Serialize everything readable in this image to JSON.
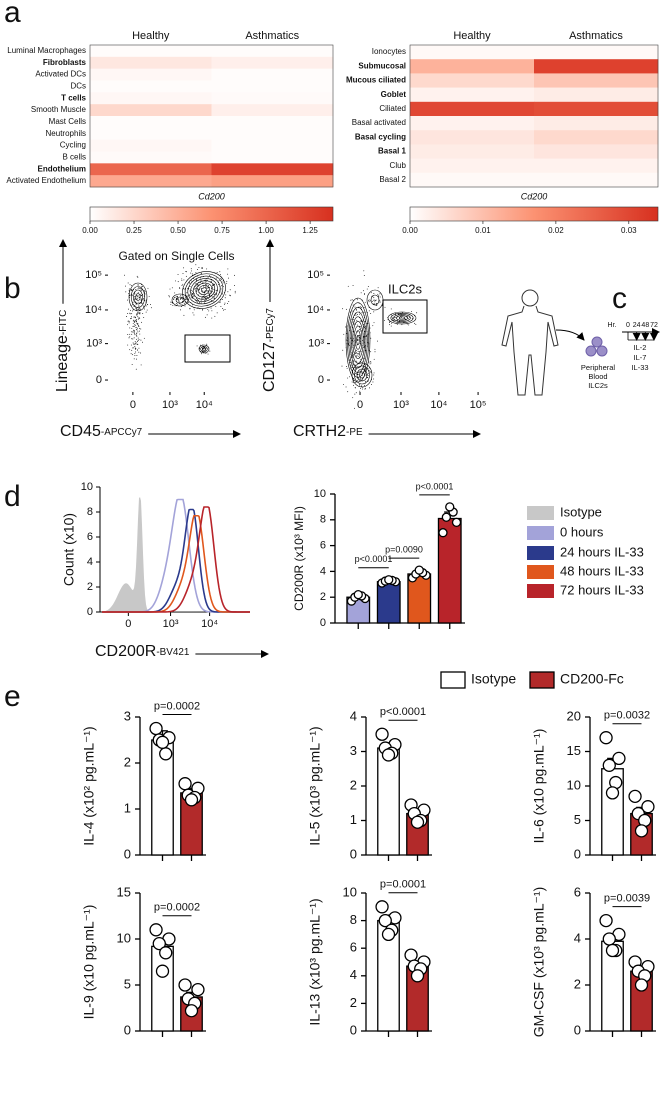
{
  "panel_labels": [
    "a",
    "b",
    "c",
    "d",
    "e"
  ],
  "diagram": {
    "cells_label": [
      "Peripheral",
      "Blood",
      "ILC2s"
    ],
    "time_unit": "Hr.",
    "times": [
      0,
      24,
      48,
      72
    ],
    "cytokines": [
      "IL-2",
      "IL-7",
      "IL-33"
    ]
  },
  "chart_data": [
    {
      "type": "heatmap",
      "columns": [
        "Healthy",
        "Asthmatics"
      ],
      "rows": [
        "Luminal Macrophages",
        "Fibroblasts",
        "Activated DCs",
        "DCs",
        "T cells",
        "Smooth Muscle",
        "Mast Cells",
        "Neutrophils",
        "Cycling",
        "B cells",
        "Endothelium",
        "Activated Endothelium"
      ],
      "bold_rows": [
        false,
        true,
        false,
        false,
        true,
        false,
        false,
        false,
        false,
        false,
        true,
        false
      ],
      "values": [
        [
          0.02,
          0.02
        ],
        [
          0.15,
          0.1
        ],
        [
          0.05,
          0.02
        ],
        [
          0.02,
          0.02
        ],
        [
          0.05,
          0.03
        ],
        [
          0.25,
          0.1
        ],
        [
          0.02,
          0.02
        ],
        [
          0.02,
          0.02
        ],
        [
          0.05,
          0.02
        ],
        [
          0.03,
          0.02
        ],
        [
          1.0,
          1.25
        ],
        [
          0.55,
          0.6
        ]
      ],
      "clim": [
        0,
        1.38
      ],
      "cticks": [
        {
          "value": 0,
          "label": "0.00"
        },
        0.25,
        {
          "value": 0.5,
          "label": "0.50"
        },
        0.75,
        {
          "value": 1,
          "label": "1.00"
        },
        1.25
      ],
      "xlabel": "Cd200",
      "colors": [
        "#ffffff",
        "#fc9272",
        "#d7301f"
      ]
    },
    {
      "type": "heatmap",
      "columns": [
        "Healthy",
        "Asthmatics"
      ],
      "rows": [
        "Ionocytes",
        "Submucosal",
        "Mucous ciliated",
        "Goblet",
        "Ciliated",
        "Basal activated",
        "Basal cycling",
        "Basal 1",
        "Club",
        "Basal 2"
      ],
      "bold_rows": [
        false,
        true,
        true,
        true,
        false,
        false,
        true,
        true,
        false,
        false
      ],
      "values": [
        [
          0.001,
          0.001
        ],
        [
          0.012,
          0.031
        ],
        [
          0.006,
          0.009
        ],
        [
          0.002,
          0.003
        ],
        [
          0.03,
          0.029
        ],
        [
          0.002,
          0.003
        ],
        [
          0.004,
          0.006
        ],
        [
          0.003,
          0.004
        ],
        [
          0.002,
          0.002
        ],
        [
          0.001,
          0.001
        ]
      ],
      "clim": [
        0,
        0.034
      ],
      "cticks": [
        {
          "value": 0,
          "label": "0.00"
        },
        0.01,
        0.02,
        0.03
      ],
      "xlabel": "Cd200",
      "colors": [
        "#ffffff",
        "#fc9272",
        "#d7301f"
      ]
    },
    {
      "type": "contour",
      "title": "Gated on Single Cells",
      "xlabel": {
        "text": "CD45",
        "suffix": "-APCCy7"
      },
      "ylabel": {
        "text": "Lineage",
        "suffix": "-FITC"
      },
      "xlim": [
        -400,
        141000
      ],
      "ylim": [
        -120,
        195000
      ],
      "xticks": [
        0,
        {
          "value": 1000,
          "label": "10³"
        },
        {
          "value": 10000,
          "label": "10⁴"
        }
      ],
      "yticks": [
        0,
        {
          "value": 1000,
          "label": "10³"
        },
        {
          "value": 10000,
          "label": "10⁴"
        },
        {
          "value": 100000,
          "label": "10⁵"
        }
      ]
    },
    {
      "type": "contour",
      "gate_label": "ILC2s",
      "xlabel": {
        "text": "CRTH2",
        "suffix": "-PE"
      },
      "ylabel": {
        "text": "CD127",
        "suffix": "-PECy7"
      },
      "xlim": [
        -480,
        150000
      ],
      "ylim": [
        -120,
        195000
      ],
      "xticks": [
        0,
        {
          "value": 1000,
          "label": "10³"
        },
        {
          "value": 10000,
          "label": "10⁴"
        },
        {
          "value": 100000,
          "label": "10⁵"
        }
      ],
      "yticks": [
        0,
        {
          "value": 1000,
          "label": "10³"
        },
        {
          "value": 10000,
          "label": "10⁴"
        },
        {
          "value": 100000,
          "label": "10⁵"
        }
      ]
    },
    {
      "type": "density",
      "ylabel": "Count (x10)",
      "xlabel": {
        "text": "CD200R",
        "suffix": "-BV421"
      },
      "ylim": [
        0,
        10
      ],
      "yticks": [
        0,
        2,
        4,
        6,
        8,
        10
      ],
      "xlim": [
        -400,
        100000
      ],
      "xticks": [
        0,
        {
          "value": 1000,
          "label": "10³"
        },
        {
          "value": 10000,
          "label": "10⁴"
        }
      ]
    },
    {
      "type": "bar",
      "ylabel": "CD200R (x10³ MFI)",
      "ylim": [
        0,
        10
      ],
      "yticks": [
        0,
        2,
        4,
        6,
        8,
        10
      ],
      "legend": [
        {
          "name": "Isotype",
          "color": "#c8c8c8"
        },
        {
          "name": "0 hours",
          "color": "#a3a3d9"
        },
        {
          "name": "24 hours IL-33",
          "color": "#2b3a8c"
        },
        {
          "name": "48 hours IL-33",
          "color": "#e0571d"
        },
        {
          "name": "72 hours IL-33",
          "color": "#b8242a"
        }
      ],
      "values": [
        2.0,
        3.2,
        3.8,
        8.1
      ],
      "errors": [
        0.2,
        0.1,
        0.2,
        0.5
      ],
      "colors": [
        "#a3a3d9",
        "#2b3a8c",
        "#e0571d",
        "#b8242a"
      ],
      "points": [
        [
          1.7,
          1.9,
          2.0,
          2.1,
          2.2
        ],
        [
          3.1,
          3.2,
          3.25,
          3.3,
          3.35
        ],
        [
          3.5,
          3.7,
          3.8,
          3.9,
          4.1
        ],
        [
          7.0,
          7.8,
          8.2,
          8.6,
          9.0
        ]
      ],
      "annotations": [
        {
          "text": "p<0.0001",
          "from": 0,
          "to": 1
        },
        {
          "text": "p=0.0090",
          "from": 1,
          "to": 2
        },
        {
          "text": "p<0.0001",
          "from": 2,
          "to": 3
        }
      ]
    },
    {
      "type": "bar",
      "ylabel": "IL-4 (x10² pg.mL⁻¹)",
      "ylim": [
        0,
        3
      ],
      "yticks": [
        0,
        1,
        2,
        3
      ],
      "legend": [
        {
          "name": "Isotype",
          "color": "#ffffff"
        },
        {
          "name": "CD200-Fc",
          "color": "#b22a2a"
        }
      ],
      "values": [
        2.5,
        1.35
      ],
      "errors": [
        0.2,
        0.1
      ],
      "colors": [
        "#ffffff",
        "#b22a2a"
      ],
      "points": [
        [
          2.75,
          2.55,
          2.5,
          2.2,
          2.45
        ],
        [
          1.55,
          1.45,
          1.3,
          1.25,
          1.2
        ]
      ],
      "annotations": [
        {
          "text": "p=0.0002",
          "from": 0,
          "to": 1
        }
      ]
    },
    {
      "type": "bar",
      "ylabel": "IL-5 (x10³ pg.mL⁻¹)",
      "ylim": [
        0,
        4
      ],
      "yticks": [
        0,
        1,
        2,
        3,
        4
      ],
      "values": [
        3.1,
        1.2
      ],
      "errors": [
        0.15,
        0.1
      ],
      "colors": [
        "#ffffff",
        "#b22a2a"
      ],
      "points": [
        [
          3.5,
          3.2,
          3.1,
          2.95,
          2.9
        ],
        [
          1.45,
          1.3,
          1.2,
          1.0,
          0.95
        ]
      ],
      "annotations": [
        {
          "text": "p<0.0001",
          "from": 0,
          "to": 1
        }
      ]
    },
    {
      "type": "bar",
      "ylabel": "IL-6 (x10 pg.mL⁻¹)",
      "ylim": [
        0,
        20
      ],
      "yticks": [
        0,
        5,
        10,
        15,
        20
      ],
      "values": [
        12.5,
        6
      ],
      "errors": [
        1.5,
        0.9
      ],
      "colors": [
        "#ffffff",
        "#b22a2a"
      ],
      "points": [
        [
          17,
          14,
          13,
          10.5,
          9
        ],
        [
          8.5,
          7,
          6,
          5,
          3.5
        ]
      ],
      "annotations": [
        {
          "text": "p=0.0032",
          "from": 0,
          "to": 1
        }
      ]
    },
    {
      "type": "bar",
      "ylabel": "IL-9 (x10 pg.mL⁻¹)",
      "ylim": [
        0,
        15
      ],
      "yticks": [
        0,
        5,
        10,
        15
      ],
      "values": [
        9.2,
        3.7
      ],
      "errors": [
        0.8,
        0.5
      ],
      "colors": [
        "#ffffff",
        "#b22a2a"
      ],
      "points": [
        [
          11,
          10,
          9.5,
          8.5,
          6.5
        ],
        [
          5,
          4.5,
          3.5,
          3,
          2.2
        ]
      ],
      "annotations": [
        {
          "text": "p=0.0002",
          "from": 0,
          "to": 1
        }
      ]
    },
    {
      "type": "bar",
      "ylabel": "IL-13 (x10³ pg.mL⁻¹)",
      "ylim": [
        0,
        10
      ],
      "yticks": [
        0,
        2,
        4,
        6,
        8,
        10
      ],
      "values": [
        8,
        4.7
      ],
      "errors": [
        0.4,
        0.3
      ],
      "colors": [
        "#ffffff",
        "#b22a2a"
      ],
      "points": [
        [
          9,
          8.2,
          8,
          7.3,
          7
        ],
        [
          5.5,
          5,
          4.7,
          4.5,
          4
        ]
      ],
      "annotations": [
        {
          "text": "p=0.0001",
          "from": 0,
          "to": 1
        }
      ]
    },
    {
      "type": "bar",
      "ylabel": "GM-CSF (x10³ pg.mL⁻¹)",
      "ylim": [
        0,
        6
      ],
      "yticks": [
        0,
        2,
        4,
        6
      ],
      "values": [
        3.9,
        2.6
      ],
      "errors": [
        0.3,
        0.2
      ],
      "colors": [
        "#ffffff",
        "#b22a2a"
      ],
      "points": [
        [
          4.8,
          4.2,
          4,
          3.5,
          3.5
        ],
        [
          3,
          2.8,
          2.6,
          2.4,
          2
        ]
      ],
      "annotations": [
        {
          "text": "p=0.0039",
          "from": 0,
          "to": 1
        }
      ]
    }
  ]
}
